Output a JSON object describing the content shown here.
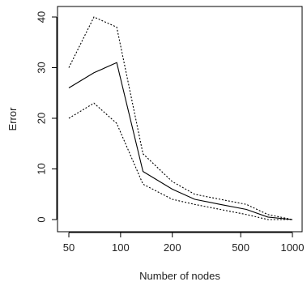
{
  "chart_data": {
    "type": "line",
    "title": "",
    "xlabel": "Number of nodes",
    "ylabel": "Error",
    "xscale": "log",
    "xlim": [
      50,
      1000
    ],
    "ylim": [
      0,
      40
    ],
    "x_ticks": [
      50,
      100,
      200,
      500,
      1000
    ],
    "x_tick_labels": [
      "50",
      "100",
      "200",
      "500",
      "1000"
    ],
    "y_ticks": [
      0,
      10,
      20,
      30,
      40
    ],
    "y_tick_labels": [
      "0",
      "10",
      "20",
      "30",
      "40"
    ],
    "grid": false,
    "legend": "none",
    "x": [
      50,
      70,
      95,
      135,
      200,
      270,
      380,
      540,
      720,
      1000
    ],
    "series": [
      {
        "style": "solid",
        "color": "#000000",
        "values": [
          26,
          29,
          31,
          9.5,
          6,
          4,
          3,
          2,
          0.5,
          0
        ]
      },
      {
        "style": "dotted",
        "color": "#000000",
        "values": [
          30,
          40,
          38,
          13,
          7.5,
          5,
          4,
          3,
          1,
          0
        ]
      },
      {
        "style": "dotted",
        "color": "#000000",
        "values": [
          20,
          23,
          19,
          7,
          4,
          3,
          2,
          1,
          0,
          0
        ]
      }
    ]
  }
}
